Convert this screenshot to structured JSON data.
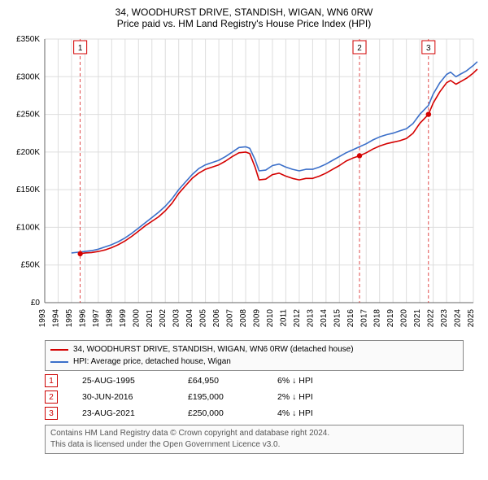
{
  "title": "34, WOODHURST DRIVE, STANDISH, WIGAN, WN6 0RW",
  "subtitle": "Price paid vs. HM Land Registry's House Price Index (HPI)",
  "chart": {
    "type": "line",
    "background_color": "#ffffff",
    "grid_color": "#dddddd",
    "axis_color": "#666666",
    "ylim": [
      0,
      350
    ],
    "ytick_step": 50,
    "ytick_labels": [
      "£0",
      "£50K",
      "£100K",
      "£150K",
      "£200K",
      "£250K",
      "£300K",
      "£350K"
    ],
    "xtick_years": [
      1993,
      1994,
      1995,
      1996,
      1997,
      1998,
      1999,
      2000,
      2001,
      2002,
      2003,
      2004,
      2005,
      2006,
      2007,
      2008,
      2009,
      2010,
      2011,
      2012,
      2013,
      2014,
      2015,
      2016,
      2017,
      2018,
      2019,
      2020,
      2021,
      2022,
      2023,
      2024,
      2025
    ],
    "series": [
      {
        "name": "property",
        "label": "34, WOODHURST DRIVE, STANDISH, WIGAN, WN6 0RW (detached house)",
        "color": "#d40000",
        "line_width": 1.6,
        "points": [
          [
            1995.65,
            64.95
          ],
          [
            1996,
            66
          ],
          [
            1996.5,
            66.5
          ],
          [
            1997,
            68
          ],
          [
            1997.5,
            70
          ],
          [
            1998,
            73
          ],
          [
            1998.5,
            77
          ],
          [
            1999,
            82
          ],
          [
            1999.5,
            88
          ],
          [
            2000,
            95
          ],
          [
            2000.5,
            102
          ],
          [
            2001,
            108
          ],
          [
            2001.5,
            114
          ],
          [
            2002,
            122
          ],
          [
            2002.5,
            132
          ],
          [
            2003,
            145
          ],
          [
            2003.5,
            155
          ],
          [
            2004,
            165
          ],
          [
            2004.5,
            172
          ],
          [
            2005,
            177
          ],
          [
            2005.5,
            180
          ],
          [
            2006,
            183
          ],
          [
            2006.5,
            188
          ],
          [
            2007,
            194
          ],
          [
            2007.5,
            199
          ],
          [
            2008,
            200
          ],
          [
            2008.3,
            198
          ],
          [
            2008.7,
            180
          ],
          [
            2009,
            163
          ],
          [
            2009.5,
            164
          ],
          [
            2010,
            170
          ],
          [
            2010.5,
            172
          ],
          [
            2011,
            168
          ],
          [
            2011.5,
            165
          ],
          [
            2012,
            163
          ],
          [
            2012.5,
            165
          ],
          [
            2013,
            165
          ],
          [
            2013.5,
            168
          ],
          [
            2014,
            172
          ],
          [
            2014.5,
            177
          ],
          [
            2015,
            182
          ],
          [
            2015.5,
            188
          ],
          [
            2016,
            192
          ],
          [
            2016.5,
            195
          ],
          [
            2017,
            199
          ],
          [
            2017.5,
            204
          ],
          [
            2018,
            208
          ],
          [
            2018.5,
            211
          ],
          [
            2019,
            213
          ],
          [
            2019.5,
            215
          ],
          [
            2020,
            218
          ],
          [
            2020.5,
            225
          ],
          [
            2021,
            238
          ],
          [
            2021.65,
            250
          ],
          [
            2022,
            265
          ],
          [
            2022.5,
            280
          ],
          [
            2023,
            292
          ],
          [
            2023.3,
            295
          ],
          [
            2023.7,
            290
          ],
          [
            2024,
            293
          ],
          [
            2024.5,
            298
          ],
          [
            2025,
            305
          ],
          [
            2025.3,
            310
          ]
        ]
      },
      {
        "name": "hpi",
        "label": "HPI: Average price, detached house, Wigan",
        "color": "#3b6fc9",
        "line_width": 1.6,
        "points": [
          [
            1995,
            66
          ],
          [
            1995.5,
            67
          ],
          [
            1996,
            68
          ],
          [
            1996.5,
            69
          ],
          [
            1997,
            71
          ],
          [
            1997.5,
            74
          ],
          [
            1998,
            77
          ],
          [
            1998.5,
            81
          ],
          [
            1999,
            86
          ],
          [
            1999.5,
            92
          ],
          [
            2000,
            99
          ],
          [
            2000.5,
            106
          ],
          [
            2001,
            113
          ],
          [
            2001.5,
            120
          ],
          [
            2002,
            128
          ],
          [
            2002.5,
            138
          ],
          [
            2003,
            150
          ],
          [
            2003.5,
            160
          ],
          [
            2004,
            170
          ],
          [
            2004.5,
            178
          ],
          [
            2005,
            183
          ],
          [
            2005.5,
            186
          ],
          [
            2006,
            189
          ],
          [
            2006.5,
            194
          ],
          [
            2007,
            200
          ],
          [
            2007.5,
            206
          ],
          [
            2008,
            207
          ],
          [
            2008.3,
            205
          ],
          [
            2008.7,
            190
          ],
          [
            2009,
            175
          ],
          [
            2009.5,
            176
          ],
          [
            2010,
            182
          ],
          [
            2010.5,
            184
          ],
          [
            2011,
            180
          ],
          [
            2011.5,
            177
          ],
          [
            2012,
            175
          ],
          [
            2012.5,
            177
          ],
          [
            2013,
            177
          ],
          [
            2013.5,
            180
          ],
          [
            2014,
            184
          ],
          [
            2014.5,
            189
          ],
          [
            2015,
            194
          ],
          [
            2015.5,
            199
          ],
          [
            2016,
            203
          ],
          [
            2016.5,
            207
          ],
          [
            2017,
            211
          ],
          [
            2017.5,
            216
          ],
          [
            2018,
            220
          ],
          [
            2018.5,
            223
          ],
          [
            2019,
            225
          ],
          [
            2019.5,
            228
          ],
          [
            2020,
            231
          ],
          [
            2020.5,
            238
          ],
          [
            2021,
            250
          ],
          [
            2021.65,
            262
          ],
          [
            2022,
            277
          ],
          [
            2022.5,
            292
          ],
          [
            2023,
            303
          ],
          [
            2023.3,
            306
          ],
          [
            2023.7,
            300
          ],
          [
            2024,
            303
          ],
          [
            2024.5,
            308
          ],
          [
            2025,
            315
          ],
          [
            2025.3,
            320
          ]
        ]
      }
    ],
    "sale_markers": [
      {
        "n": 1,
        "x": 1995.65,
        "y": 64.95,
        "color": "#d40000"
      },
      {
        "n": 2,
        "x": 2016.5,
        "y": 195,
        "color": "#d40000"
      },
      {
        "n": 3,
        "x": 2021.65,
        "y": 250,
        "color": "#d40000"
      }
    ],
    "guide": {
      "color": "#d40000",
      "dash": "4 3",
      "width": 0.7
    }
  },
  "legend": {
    "box_bg": "#fafafa",
    "box_border": "#888888"
  },
  "sales": [
    {
      "badge": "1",
      "date": "25-AUG-1995",
      "price": "£64,950",
      "diff": "6% ↓ HPI"
    },
    {
      "badge": "2",
      "date": "30-JUN-2016",
      "price": "£195,000",
      "diff": "2% ↓ HPI"
    },
    {
      "badge": "3",
      "date": "23-AUG-2021",
      "price": "£250,000",
      "diff": "4% ↓ HPI"
    }
  ],
  "footer": {
    "line1": "Contains HM Land Registry data © Crown copyright and database right 2024.",
    "line2": "This data is licensed under the Open Government Licence v3.0."
  }
}
